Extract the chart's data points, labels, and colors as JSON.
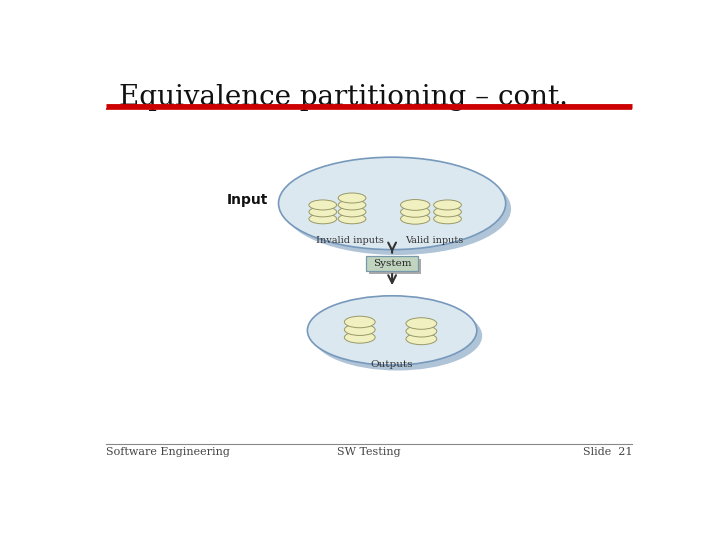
{
  "title": "Equivalence partitioning – cont.",
  "title_fontsize": 20,
  "title_color": "#111111",
  "red_line_color": "#cc0000",
  "bg_color": "#ffffff",
  "footer_left": "Software Engineering",
  "footer_center": "SW Testing",
  "footer_right": "Slide  21",
  "footer_fontsize": 8,
  "input_label": "Input",
  "invalid_inputs_label": "Invalid inputs",
  "valid_inputs_label": "Valid inputs",
  "outputs_label": "Outputs",
  "system_label": "System",
  "ellipse_fill": "#dce8f0",
  "ellipse_edge": "#7799bb",
  "ellipse_shadow": "#b0c4d8",
  "coin_fill": "#f0f0c0",
  "coin_edge": "#999966",
  "system_fill": "#c0d4c0",
  "system_edge": "#7799aa",
  "system_shadow": "#aaaaaa",
  "arrow_color": "#333333"
}
